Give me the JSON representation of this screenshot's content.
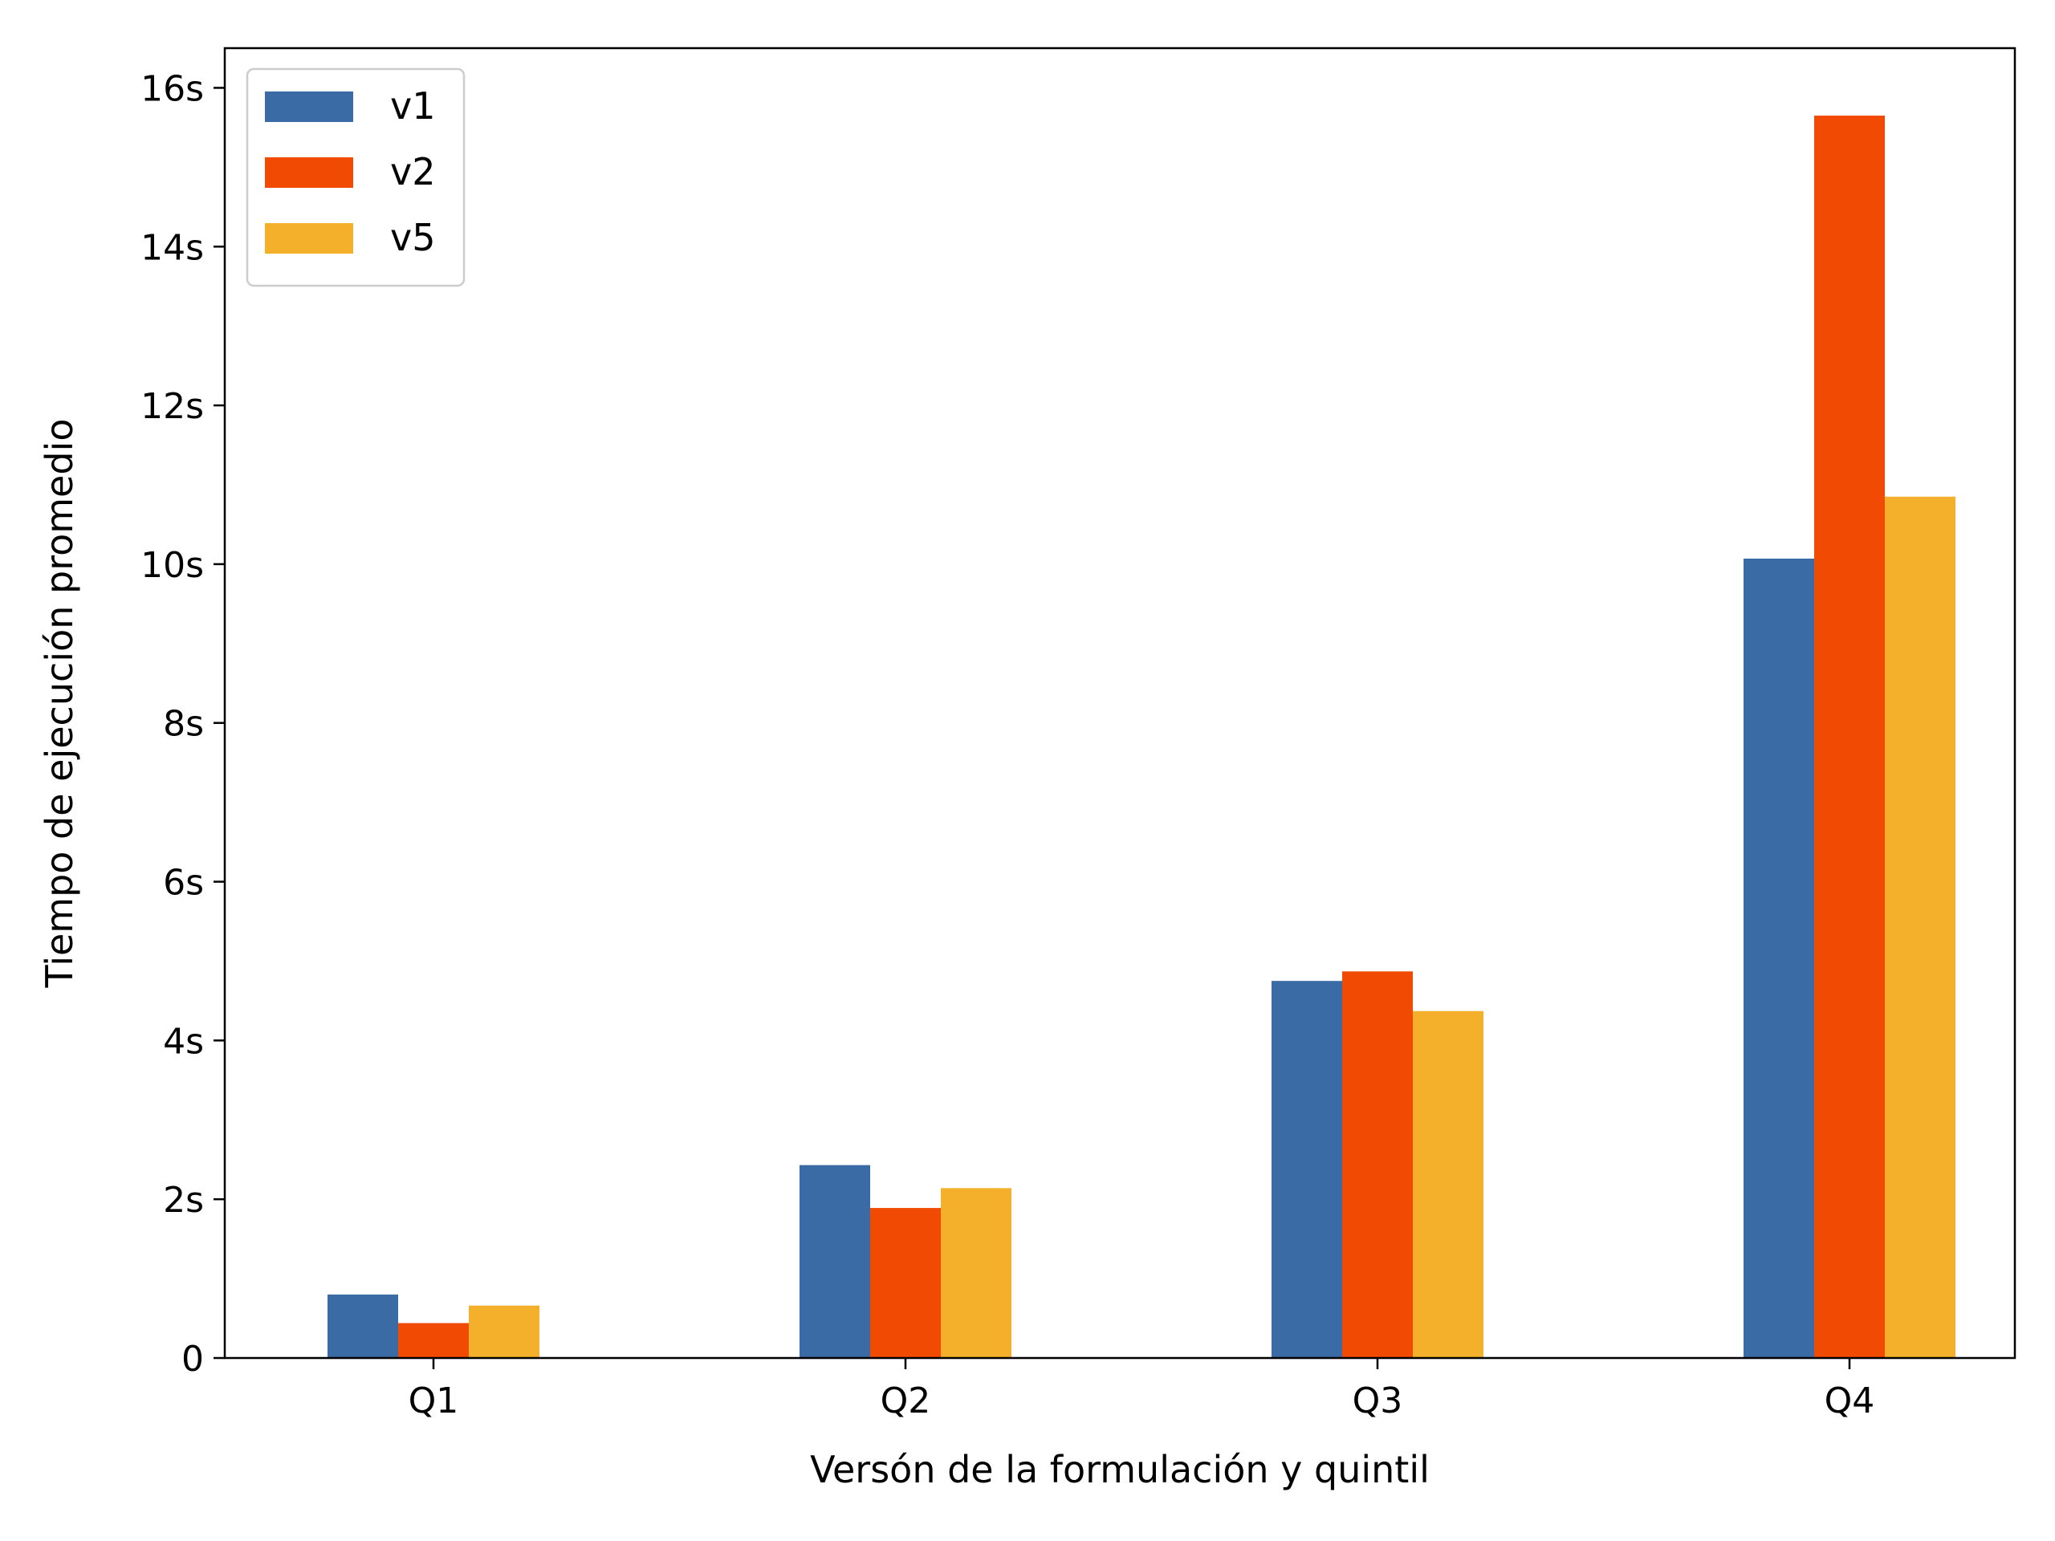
{
  "chart_data": {
    "type": "bar",
    "title": "",
    "xlabel": "Versón de la formulación y quintil",
    "ylabel": "Tiempo de ejecución promedio",
    "categories": [
      "Q1",
      "Q2",
      "Q3",
      "Q4"
    ],
    "series": [
      {
        "name": "v1",
        "color": "#3b6ba5",
        "values": [
          0.8,
          2.43,
          4.75,
          10.07
        ]
      },
      {
        "name": "v2",
        "color": "#f04a03",
        "values": [
          0.44,
          1.89,
          4.87,
          15.65
        ]
      },
      {
        "name": "v5",
        "color": "#f5b02b",
        "values": [
          0.66,
          2.14,
          4.37,
          10.85
        ]
      }
    ],
    "ylim": [
      0,
      16.5
    ],
    "yticks": [
      0,
      2,
      4,
      6,
      8,
      10,
      12,
      14,
      16
    ],
    "ytick_labels": [
      "0",
      "2s",
      "4s",
      "6s",
      "8s",
      "10s",
      "12s",
      "14s",
      "16s"
    ],
    "legend_position": "top-left",
    "grid": false
  }
}
